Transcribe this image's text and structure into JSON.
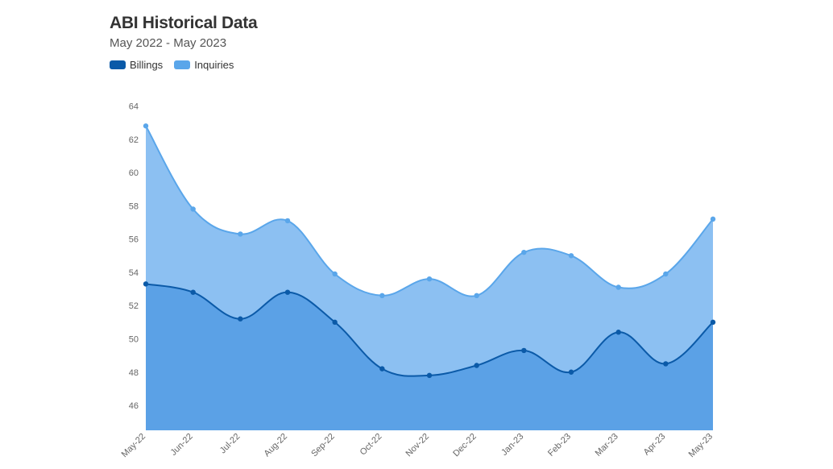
{
  "chart_data": {
    "type": "area",
    "title": "ABI Historical Data",
    "subtitle": "May 2022 - May 2023",
    "categories": [
      "May-22",
      "Jun-22",
      "Jul-22",
      "Aug-22",
      "Sep-22",
      "Oct-22",
      "Nov-22",
      "Dec-22",
      "Jan-23",
      "Feb-23",
      "Mar-23",
      "Apr-23",
      "May-23"
    ],
    "series": [
      {
        "name": "Billings",
        "color": "#0b5aa8",
        "fill": "#5ba1e6",
        "values": [
          53.3,
          52.8,
          51.2,
          52.8,
          51.0,
          48.2,
          47.8,
          48.4,
          49.3,
          48.0,
          50.4,
          48.5,
          51.0
        ]
      },
      {
        "name": "Inquiries",
        "color": "#5aa6ea",
        "fill": "#8cc0f2",
        "values": [
          62.8,
          57.8,
          56.3,
          57.1,
          53.9,
          52.6,
          53.6,
          52.6,
          55.2,
          55.0,
          53.1,
          53.9,
          57.2
        ]
      }
    ],
    "y_ticks": [
      46,
      48,
      50,
      52,
      54,
      56,
      58,
      60,
      62,
      64
    ],
    "ylim": [
      44.5,
      64.8
    ],
    "legend_position": "top-left",
    "grid": false
  }
}
